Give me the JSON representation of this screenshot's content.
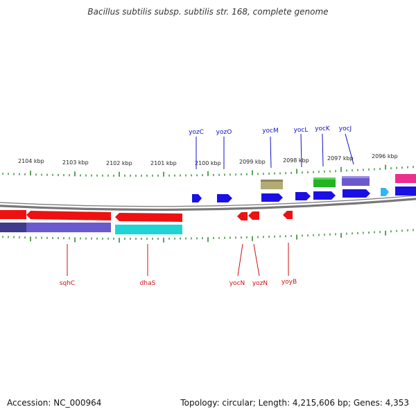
{
  "title": "Bacillus subtilis subsp. subtilis str. 168, complete genome",
  "footer": {
    "accession": "Accession: NC_000964",
    "summary": "Topology: circular; Length: 4,215,606 bp; Genes: 4,353"
  },
  "colors": {
    "backbone": "#888888",
    "tick": "#2e8b2e",
    "top_label": "#1010c8",
    "bottom_label": "#cc1010",
    "red": "#ee1111",
    "blue": "#1a10e6",
    "olive": "#b3aa76",
    "green": "#22b322",
    "purple": "#6a5acd",
    "cyan": "#20d4d4",
    "skyblue": "#2fb8f0",
    "pink": "#ee2e8e"
  },
  "kbp_labels": [
    "2104 kbp",
    "2103 kbp",
    "2102 kbp",
    "2101 kbp",
    "2100 kbp",
    "2099 kbp",
    "2098 kbp",
    "2097 kbp",
    "2096 kbp"
  ],
  "top_genes": [
    "yozC",
    "yozO",
    "yocM",
    "yocL",
    "yocK",
    "yocJ"
  ],
  "bottom_genes": [
    "sqhC",
    "dhaS",
    "yocN",
    "yozN",
    "yoyB"
  ]
}
